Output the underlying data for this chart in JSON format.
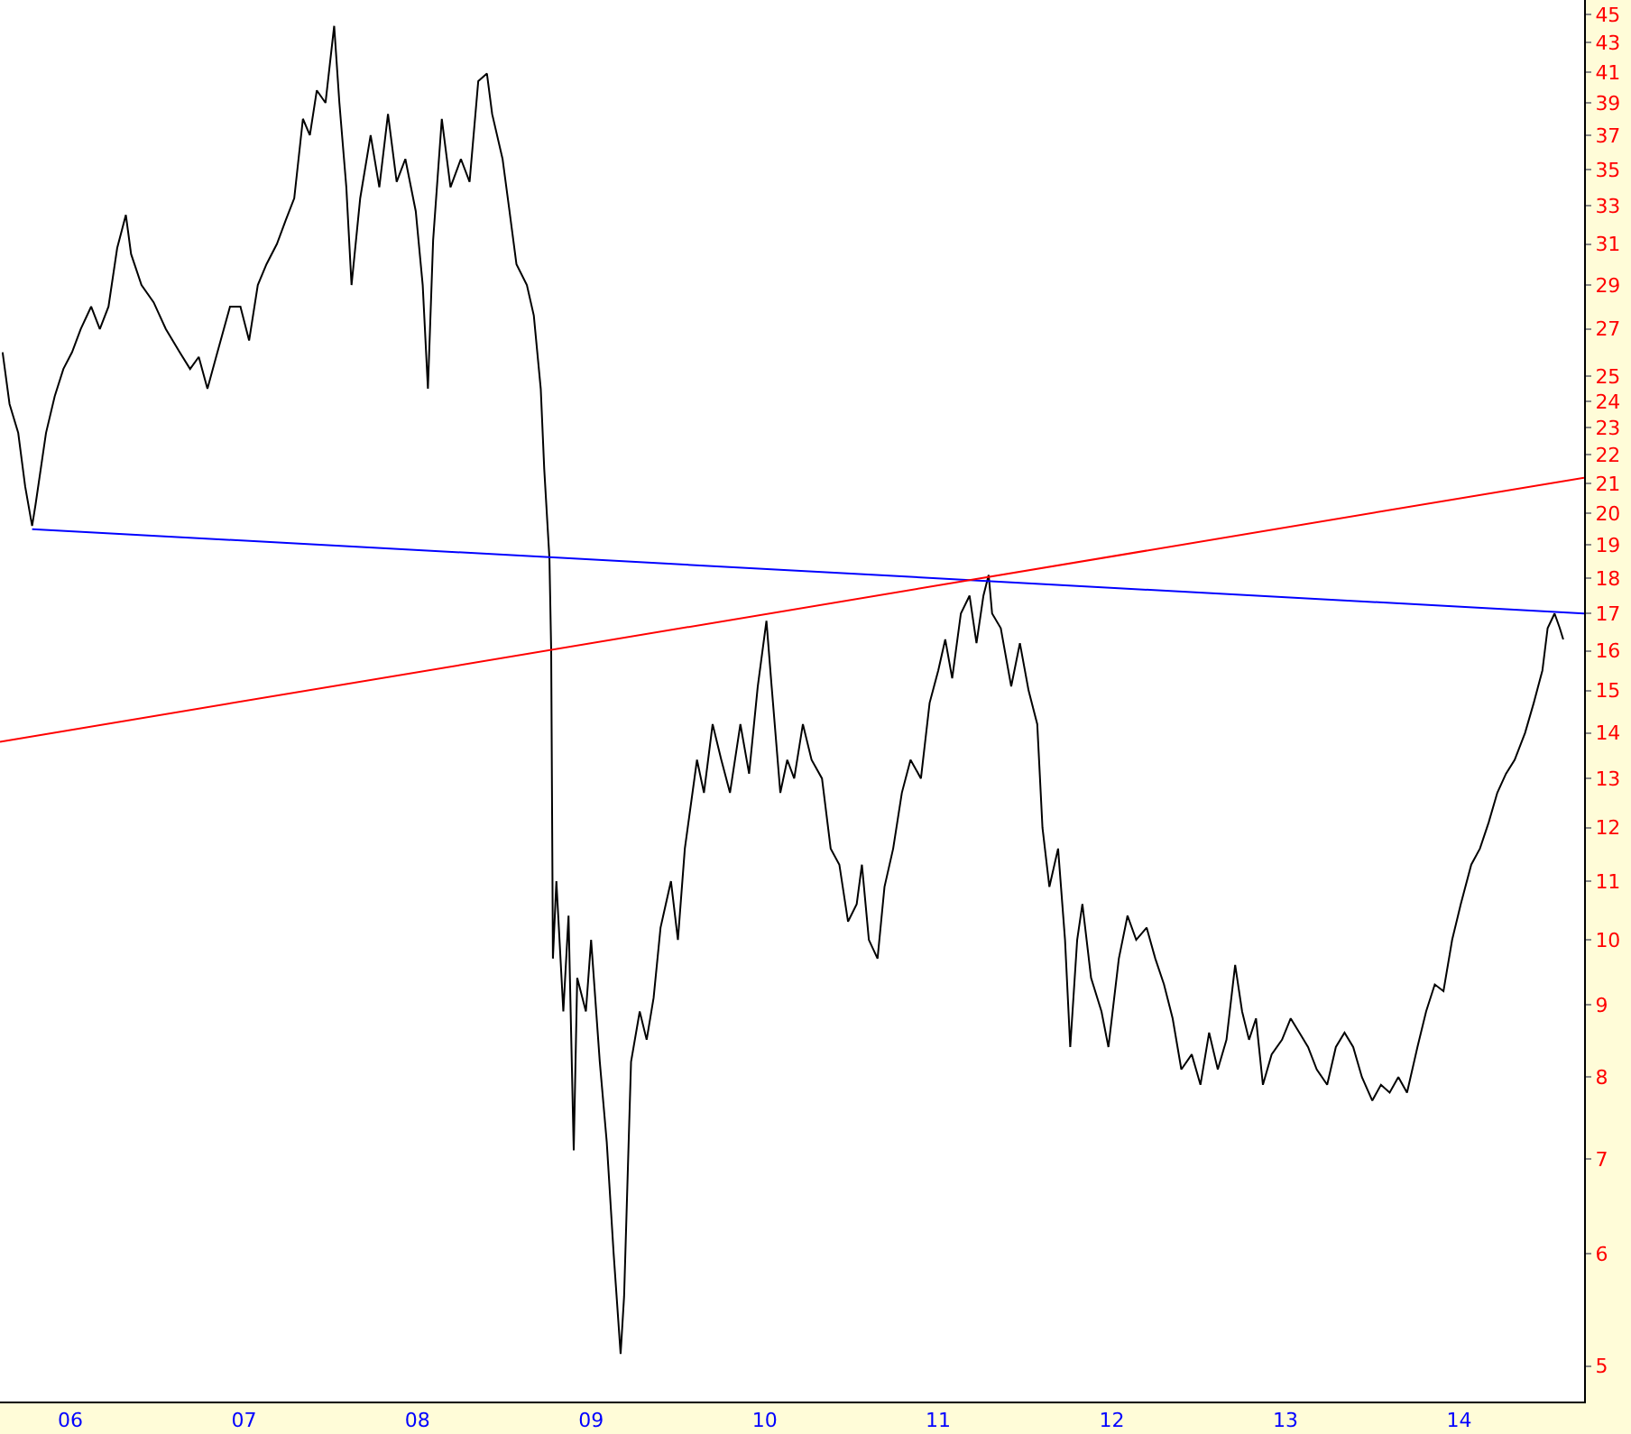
{
  "chart_data": {
    "type": "line",
    "log": "y",
    "marker": "none",
    "line_style": "solid",
    "xlim": [
      2005.595,
      2014.72
    ],
    "ylim": [
      4.72,
      46.1
    ],
    "xticks": [
      {
        "value": 2006,
        "label": "06"
      },
      {
        "value": 2007,
        "label": "07"
      },
      {
        "value": 2008,
        "label": "08"
      },
      {
        "value": 2009,
        "label": "09"
      },
      {
        "value": 2010,
        "label": "10"
      },
      {
        "value": 2011,
        "label": "11"
      },
      {
        "value": 2012,
        "label": "12"
      },
      {
        "value": 2013,
        "label": "13"
      },
      {
        "value": 2014,
        "label": "14"
      }
    ],
    "yticks": [
      5,
      6,
      7,
      8,
      9,
      10,
      11,
      12,
      13,
      14,
      15,
      16,
      17,
      18,
      19,
      20,
      21,
      22,
      23,
      24,
      25,
      27,
      29,
      31,
      33,
      35,
      37,
      39,
      41,
      43,
      45
    ],
    "series": [
      {
        "color": "#000000",
        "x": [
          2005.61,
          2005.65,
          2005.7,
          2005.74,
          2005.78,
          2005.8,
          2005.86,
          2005.91,
          2005.96,
          2006.01,
          2006.06,
          2006.12,
          2006.17,
          2006.22,
          2006.27,
          2006.32,
          2006.35,
          2006.41,
          2006.48,
          2006.55,
          2006.63,
          2006.69,
          2006.74,
          2006.79,
          2006.84,
          2006.92,
          2006.98,
          2007.03,
          2007.08,
          2007.13,
          2007.19,
          2007.24,
          2007.29,
          2007.34,
          2007.38,
          2007.42,
          2007.47,
          2007.52,
          2007.55,
          2007.59,
          2007.62,
          2007.67,
          2007.73,
          2007.78,
          2007.83,
          2007.88,
          2007.93,
          2007.99,
          2008.03,
          2008.06,
          2008.09,
          2008.14,
          2008.19,
          2008.25,
          2008.3,
          2008.35,
          2008.4,
          2008.43,
          2008.49,
          2008.53,
          2008.57,
          2008.63,
          2008.67,
          2008.71,
          2008.73,
          2008.76,
          2008.77,
          2008.78,
          2008.8,
          2008.84,
          2008.87,
          2008.9,
          2008.92,
          2008.97,
          2009.0,
          2009.05,
          2009.09,
          2009.13,
          2009.17,
          2009.19,
          2009.23,
          2009.28,
          2009.32,
          2009.36,
          2009.4,
          2009.46,
          2009.5,
          2009.54,
          2009.61,
          2009.65,
          2009.7,
          2009.75,
          2009.8,
          2009.86,
          2009.91,
          2009.96,
          2010.01,
          2010.04,
          2010.09,
          2010.13,
          2010.17,
          2010.22,
          2010.27,
          2010.33,
          2010.38,
          2010.43,
          2010.48,
          2010.53,
          2010.56,
          2010.6,
          2010.65,
          2010.69,
          2010.74,
          2010.79,
          2010.84,
          2010.9,
          2010.95,
          2011.0,
          2011.04,
          2011.08,
          2011.13,
          2011.18,
          2011.22,
          2011.26,
          2011.29,
          2011.31,
          2011.36,
          2011.42,
          2011.47,
          2011.52,
          2011.57,
          2011.6,
          2011.64,
          2011.69,
          2011.73,
          2011.76,
          2011.8,
          2011.83,
          2011.88,
          2011.94,
          2011.98,
          2012.04,
          2012.09,
          2012.14,
          2012.2,
          2012.25,
          2012.3,
          2012.35,
          2012.4,
          2012.46,
          2012.51,
          2012.56,
          2012.61,
          2012.66,
          2012.71,
          2012.75,
          2012.79,
          2012.83,
          2012.87,
          2012.92,
          2012.98,
          2013.03,
          2013.08,
          2013.13,
          2013.18,
          2013.24,
          2013.29,
          2013.34,
          2013.39,
          2013.44,
          2013.5,
          2013.55,
          2013.6,
          2013.65,
          2013.7,
          2013.76,
          2013.81,
          2013.86,
          2013.91,
          2013.96,
          2014.01,
          2014.07,
          2014.12,
          2014.17,
          2014.22,
          2014.27,
          2014.32,
          2014.38,
          2014.43,
          2014.48,
          2014.51,
          2014.55,
          2014.58,
          2014.6
        ],
        "values": [
          26,
          23.9,
          22.8,
          20.9,
          19.6,
          20.3,
          22.8,
          24.2,
          25.3,
          26,
          27,
          28,
          27,
          28,
          30.8,
          32.5,
          30.5,
          29,
          28.2,
          27,
          26,
          25.3,
          25.8,
          24.5,
          25.8,
          28,
          28,
          26.5,
          29,
          30,
          31,
          32.2,
          33.4,
          38,
          37,
          39.8,
          39,
          44.2,
          39,
          34,
          29,
          33.4,
          37,
          34,
          38.3,
          34.3,
          35.6,
          32.7,
          29,
          24.5,
          31.2,
          38,
          34,
          35.6,
          34.3,
          40.4,
          40.9,
          38.3,
          35.6,
          32.7,
          30,
          29,
          27.6,
          24.5,
          21.5,
          18.6,
          16.0,
          9.7,
          11,
          8.9,
          10.4,
          7.1,
          9.4,
          8.9,
          10,
          8.2,
          7.2,
          6,
          5.1,
          5.6,
          8.2,
          8.9,
          8.5,
          9.1,
          10.2,
          11,
          10,
          11.6,
          13.4,
          12.7,
          14.2,
          13.4,
          12.7,
          14.2,
          13.1,
          15.1,
          16.8,
          15.1,
          12.7,
          13.4,
          13.0,
          14.2,
          13.4,
          13.0,
          11.6,
          11.3,
          10.3,
          10.6,
          11.3,
          10,
          9.7,
          10.9,
          11.6,
          12.7,
          13.4,
          13.0,
          14.7,
          15.5,
          16.3,
          15.3,
          17,
          17.5,
          16.2,
          17.5,
          18.1,
          17,
          16.6,
          15.1,
          16.2,
          15,
          14.2,
          12,
          10.9,
          11.6,
          10,
          8.4,
          10,
          10.6,
          9.4,
          8.9,
          8.4,
          9.7,
          10.4,
          10,
          10.2,
          9.7,
          9.3,
          8.8,
          8.1,
          8.3,
          7.9,
          8.6,
          8.1,
          8.5,
          9.6,
          8.9,
          8.5,
          8.8,
          7.9,
          8.3,
          8.5,
          8.8,
          8.6,
          8.4,
          8.1,
          7.9,
          8.4,
          8.6,
          8.4,
          8.0,
          7.7,
          7.9,
          7.8,
          8.0,
          7.8,
          8.4,
          8.9,
          9.3,
          9.2,
          10,
          10.6,
          11.3,
          11.6,
          12.1,
          12.7,
          13.1,
          13.4,
          14.0,
          14.7,
          15.5,
          16.6,
          17,
          16.6,
          16.3
        ]
      },
      {
        "color": "#0000ff",
        "x": [
          2005.78,
          2014.72
        ],
        "values": [
          19.5,
          17.0
        ]
      },
      {
        "color": "#ff0000",
        "x": [
          2005.595,
          2014.72
        ],
        "values": [
          13.8,
          21.2
        ]
      }
    ]
  }
}
